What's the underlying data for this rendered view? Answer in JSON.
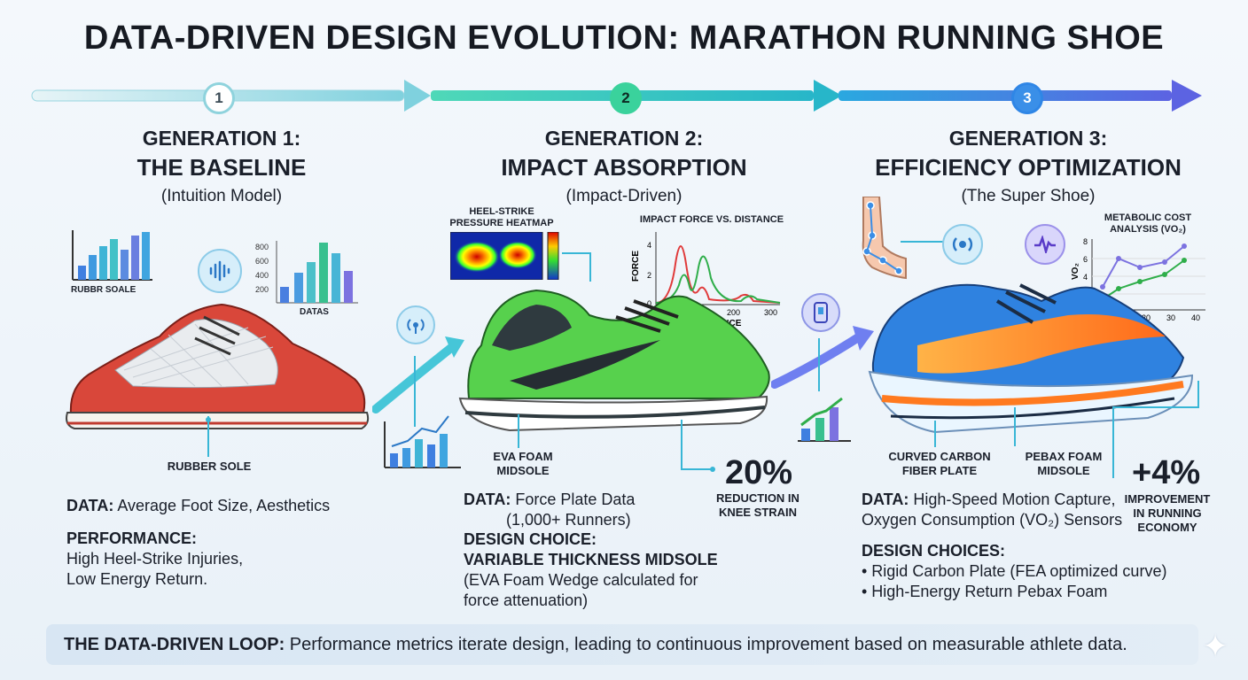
{
  "title": "DATA-DRIVEN DESIGN EVOLUTION: MARATHON RUNNING SHOE",
  "steps": [
    "1",
    "2",
    "3"
  ],
  "gen1": {
    "heading": "GENERATION 1:",
    "name": "THE BASELINE",
    "subtitle": "(Intuition Model)",
    "chart_left_label": "RUBBR SOALE",
    "chart_right_label": "DATAS",
    "chart_right_ticks": [
      "800",
      "600",
      "400",
      "200"
    ],
    "callout": "RUBBER SOLE",
    "data_label": "DATA:",
    "data_text": "Average Foot Size, Aesthetics",
    "performance_label": "PERFORMANCE:",
    "performance_lines": [
      "High Heel-Strike Injuries,",
      "Low Energy Return."
    ]
  },
  "gen2": {
    "heading": "GENERATION 2:",
    "name": "IMPACT ABSORPTION",
    "subtitle": "(Impact-Driven)",
    "heatmap_label_1": "HEEL-STRIKE",
    "heatmap_label_2": "PRESSURE HEATMAP",
    "chart_title": "IMPACT FORCE VS. DISTANCE",
    "chart_ylabel": "FORCE",
    "chart_xlabel": "DISTANCE",
    "chart_xticks": [
      "0",
      "100",
      "200",
      "300"
    ],
    "chart_yticks": [
      "4",
      "2",
      "0"
    ],
    "callout_1": "EVA FOAM",
    "callout_2": "MIDSOLE",
    "stat_value": "20%",
    "stat_caption_1": "REDUCTION IN",
    "stat_caption_2": "KNEE STRAIN",
    "data_label": "DATA:",
    "data_text": "Force Plate Data",
    "data_text_2": "(1,000+ Runners)",
    "design_label": "DESIGN CHOICE:",
    "design_name": "VARIABLE THICKNESS MIDSOLE",
    "design_lines": [
      "(EVA Foam Wedge calculated for",
      "force attenuation)"
    ]
  },
  "gen3": {
    "heading": "GENERATION 3:",
    "name": "EFFICIENCY OPTIMIZATION",
    "subtitle": "(The Super Shoe)",
    "chart_title_1": "METABOLIC COST",
    "chart_title_2": "ANALYSIS (VO₂)",
    "chart_ylabel": "VO₂",
    "chart_xticks": [
      "0",
      "10",
      "20",
      "30",
      "40"
    ],
    "chart_yticks": [
      "8",
      "6",
      "4",
      "2"
    ],
    "callout_plate_1": "CURVED CARBON",
    "callout_plate_2": "FIBER PLATE",
    "callout_foam_1": "PEBAX FOAM",
    "callout_foam_2": "MIDSOLE",
    "stat_value": "+4%",
    "stat_caption_1": "IMPROVEMENT",
    "stat_caption_2": "IN RUNNING",
    "stat_caption_3": "ECONOMY",
    "data_label": "DATA:",
    "data_text": "High-Speed Motion Capture,",
    "data_text_2": "Oxygen Consumption (VO₂) Sensors",
    "design_label": "DESIGN CHOICES:",
    "design_bullets": [
      "• Rigid Carbon Plate (FEA optimized curve)",
      "• High-Energy Return Pebax Foam"
    ]
  },
  "footer": {
    "label": "THE DATA-DRIVEN LOOP:",
    "text": " Performance metrics iterate design, leading to continuous improvement based on measurable athlete data."
  },
  "colors": {
    "step1": "#8fd3dd",
    "step2": "#3ad29c",
    "step3": "#2f86e6",
    "gen1_shoe": "#d9473a",
    "gen2_shoe": "#57d14d",
    "gen3_shoe": "#2f82e0",
    "gen3_accent": "#ff7a1f"
  }
}
